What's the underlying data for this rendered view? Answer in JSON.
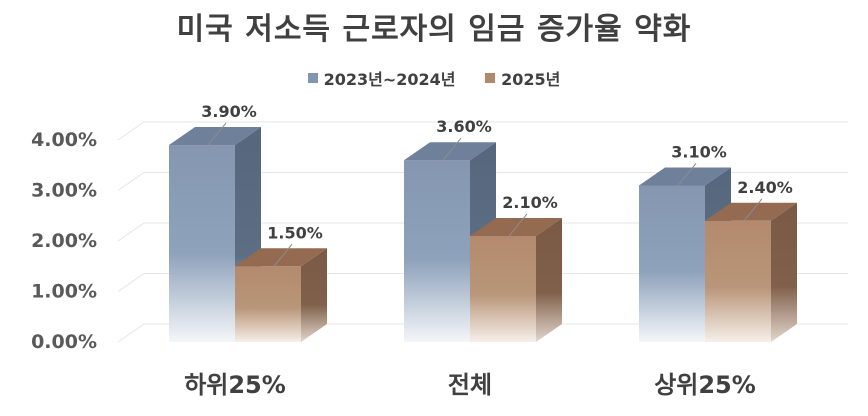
{
  "chart_data": {
    "type": "bar",
    "title": "미국 저소득 근로자의 임금 증가율 약화",
    "categories": [
      "하위25%",
      "전체",
      "상위25%"
    ],
    "series": [
      {
        "name": "2023년~2024년",
        "values": [
          3.9,
          3.6,
          3.1
        ],
        "labels": [
          "3.90%",
          "3.60%",
          "3.10%"
        ],
        "color": "#8296b0"
      },
      {
        "name": "2025년",
        "values": [
          1.5,
          2.1,
          2.4
        ],
        "labels": [
          "1.50%",
          "2.10%",
          "2.40%"
        ],
        "color": "#b0896c"
      }
    ],
    "ylim": [
      0,
      4.0
    ],
    "yticks": [
      {
        "value": 0,
        "label": "0.00%"
      },
      {
        "value": 1,
        "label": "1.00%"
      },
      {
        "value": 2,
        "label": "2.00%"
      },
      {
        "value": 3,
        "label": "3.00%"
      },
      {
        "value": 4,
        "label": "4.00%"
      }
    ],
    "grid": true,
    "legend_position": "top"
  }
}
